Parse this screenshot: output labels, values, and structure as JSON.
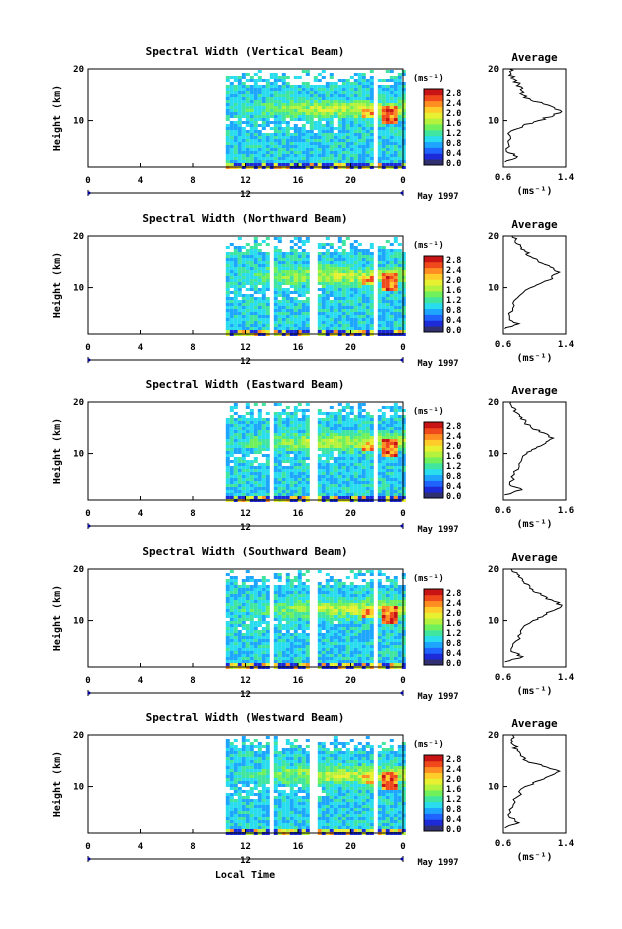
{
  "chart_data": {
    "type": "heatmap",
    "x_axis": {
      "ticks": [
        "0",
        "4",
        "8",
        "12",
        "16",
        "20",
        "0"
      ],
      "xlim": [
        0,
        24
      ],
      "date_marker": "12",
      "date_label": "May 1997",
      "xlabel": "Local Time"
    },
    "y_axis": {
      "ylabel": "Height (km)",
      "ticks": [
        "10",
        "20"
      ],
      "ylim": [
        1,
        20
      ]
    },
    "colorbar": {
      "unit": "(ms⁻¹)",
      "ticks": [
        "2.8",
        "2.4",
        "2.0",
        "1.6",
        "1.2",
        "0.8",
        "0.4",
        "0.0"
      ],
      "colors": [
        "#303070",
        "#1c2ad8",
        "#1f64ff",
        "#1ea6ff",
        "#29dcee",
        "#40e6a0",
        "#70f05a",
        "#b4f23e",
        "#e8f032",
        "#ffcc2a",
        "#ff8e22",
        "#f04a1c",
        "#c81414"
      ]
    },
    "panels": [
      {
        "title": "Spectral Width (Vertical Beam)",
        "avg_title": "Average",
        "avg_unit": "(ms⁻¹)",
        "avg_ticks": [
          "0.6",
          "1.4"
        ],
        "avg_xlim": [
          0.6,
          1.4
        ],
        "avg_yticks": [
          "10",
          "20"
        ],
        "data_start_hour": 10.5,
        "gap_hours": [
          21.7
        ],
        "profile": [
          [
            0.62,
            2
          ],
          [
            0.78,
            3
          ],
          [
            0.64,
            4
          ],
          [
            0.66,
            6
          ],
          [
            0.7,
            8
          ],
          [
            0.85,
            9
          ],
          [
            1.05,
            10
          ],
          [
            1.25,
            11
          ],
          [
            1.33,
            12
          ],
          [
            1.18,
            13
          ],
          [
            0.95,
            14
          ],
          [
            0.85,
            15
          ],
          [
            0.82,
            16
          ],
          [
            0.8,
            17
          ],
          [
            0.74,
            18
          ],
          [
            0.7,
            19
          ],
          [
            0.68,
            20
          ]
        ]
      },
      {
        "title": "Spectral Width (Northward Beam)",
        "avg_title": "Average",
        "avg_unit": "(ms⁻¹)",
        "avg_ticks": [
          "0.6",
          "1.4"
        ],
        "avg_xlim": [
          0.6,
          1.4
        ],
        "avg_yticks": [
          "10",
          "20"
        ],
        "data_start_hour": 10.5,
        "gap_hours": [
          13.8,
          17.0,
          21.7
        ],
        "profile": [
          [
            0.62,
            2
          ],
          [
            0.8,
            3
          ],
          [
            0.68,
            4
          ],
          [
            0.72,
            6
          ],
          [
            0.78,
            8
          ],
          [
            0.95,
            10
          ],
          [
            1.1,
            11
          ],
          [
            1.22,
            12
          ],
          [
            1.32,
            13
          ],
          [
            1.2,
            14
          ],
          [
            1.05,
            15
          ],
          [
            0.95,
            16
          ],
          [
            0.88,
            17
          ],
          [
            0.82,
            18
          ],
          [
            0.75,
            19
          ],
          [
            0.72,
            20
          ]
        ]
      },
      {
        "title": "Spectral Width (Eastward Beam)",
        "avg_title": "Average",
        "avg_unit": "(ms⁻¹)",
        "avg_ticks": [
          "0.6",
          "1.6"
        ],
        "avg_xlim": [
          0.6,
          1.6
        ],
        "avg_yticks": [
          "10",
          "20"
        ],
        "data_start_hour": 10.5,
        "gap_hours": [
          13.8,
          17.0,
          21.7
        ],
        "profile": [
          [
            0.62,
            2
          ],
          [
            0.9,
            3
          ],
          [
            0.7,
            4
          ],
          [
            0.78,
            6
          ],
          [
            0.85,
            8
          ],
          [
            0.98,
            10
          ],
          [
            1.12,
            11
          ],
          [
            1.28,
            12
          ],
          [
            1.4,
            13
          ],
          [
            1.25,
            14
          ],
          [
            1.05,
            15
          ],
          [
            0.95,
            16
          ],
          [
            0.9,
            17
          ],
          [
            0.8,
            18
          ],
          [
            0.74,
            19
          ],
          [
            0.72,
            20
          ]
        ]
      },
      {
        "title": "Spectral Width (Southward Beam)",
        "avg_title": "Average",
        "avg_unit": "(ms⁻¹)",
        "avg_ticks": [
          "0.6",
          "1.4"
        ],
        "avg_xlim": [
          0.6,
          1.4
        ],
        "avg_yticks": [
          "10",
          "20"
        ],
        "data_start_hour": 10.5,
        "gap_hours": [
          13.8,
          17.0,
          21.7
        ],
        "profile": [
          [
            0.62,
            2
          ],
          [
            0.85,
            3
          ],
          [
            0.7,
            4
          ],
          [
            0.76,
            6
          ],
          [
            0.82,
            8
          ],
          [
            0.98,
            10
          ],
          [
            1.12,
            11
          ],
          [
            1.25,
            12
          ],
          [
            1.35,
            13
          ],
          [
            1.22,
            14
          ],
          [
            1.08,
            15
          ],
          [
            0.98,
            16
          ],
          [
            0.92,
            17
          ],
          [
            0.85,
            18
          ],
          [
            0.78,
            19
          ],
          [
            0.7,
            20
          ]
        ]
      },
      {
        "title": "Spectral Width (Westward Beam)",
        "avg_title": "Average",
        "avg_unit": "(ms⁻¹)",
        "avg_ticks": [
          "0.6",
          "1.4"
        ],
        "avg_xlim": [
          0.6,
          1.4
        ],
        "avg_yticks": [
          "10",
          "20"
        ],
        "data_start_hour": 10.5,
        "gap_hours": [
          13.8,
          17.0,
          21.7
        ],
        "profile": [
          [
            0.62,
            2
          ],
          [
            0.8,
            3
          ],
          [
            0.68,
            4
          ],
          [
            0.72,
            6
          ],
          [
            0.78,
            8
          ],
          [
            0.88,
            10
          ],
          [
            1.02,
            11
          ],
          [
            1.18,
            12
          ],
          [
            1.32,
            13
          ],
          [
            1.1,
            14
          ],
          [
            0.9,
            15
          ],
          [
            0.82,
            16
          ],
          [
            0.78,
            17
          ],
          [
            0.74,
            18
          ],
          [
            0.7,
            19
          ],
          [
            0.72,
            20
          ]
        ]
      }
    ]
  }
}
